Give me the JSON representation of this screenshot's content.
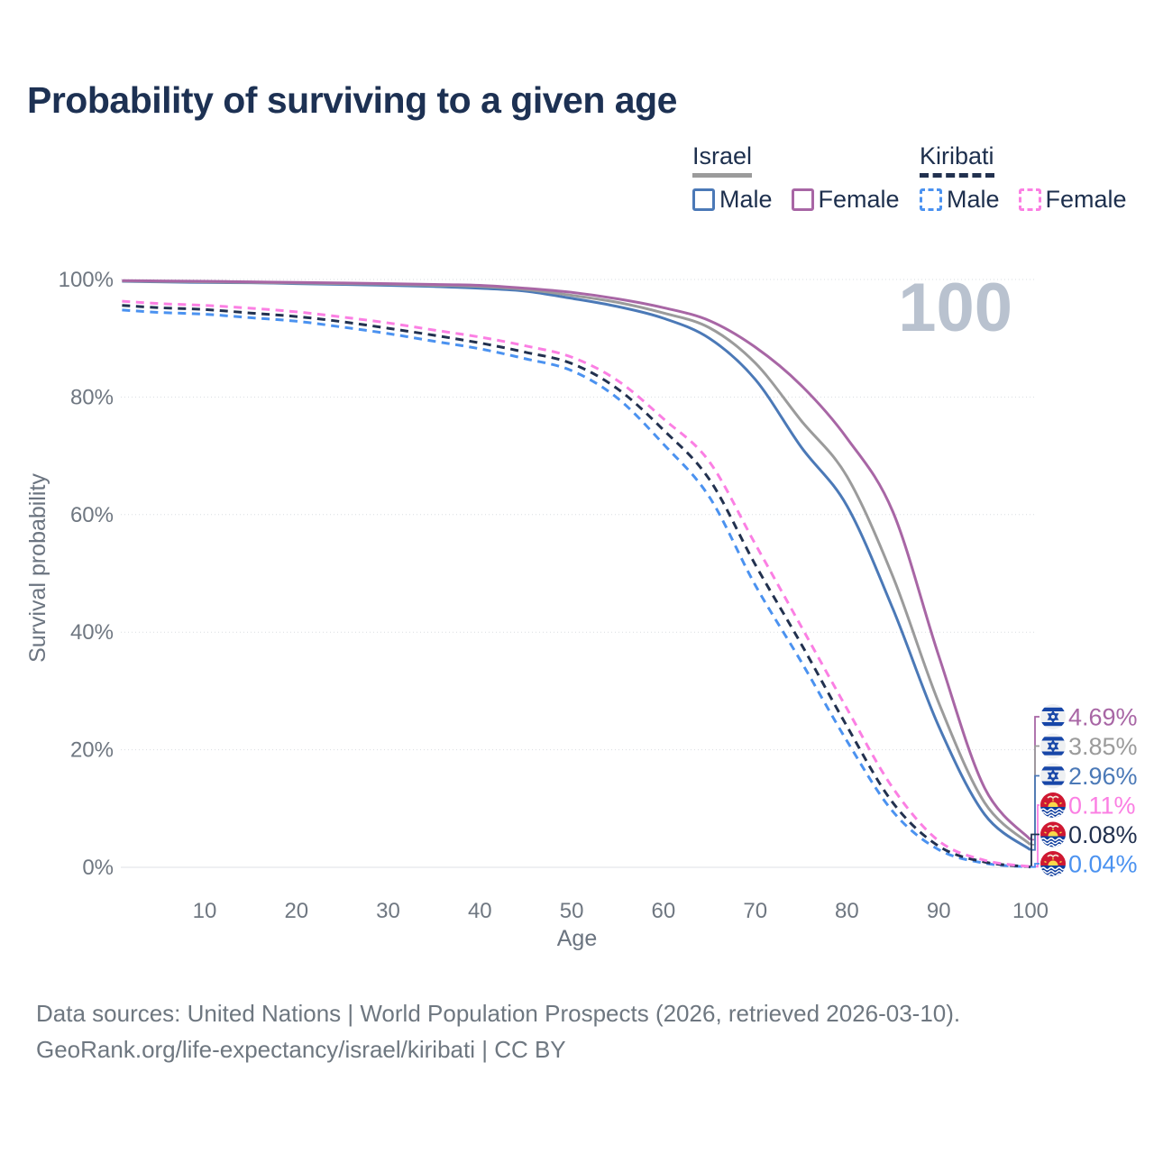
{
  "title": "Probability of surviving to a given age",
  "watermark": "100",
  "legend": {
    "groups": [
      {
        "label": "Israel",
        "line_style": "solid",
        "items": [
          {
            "label": "Male",
            "series": "israel_male"
          },
          {
            "label": "Female",
            "series": "israel_female"
          }
        ]
      },
      {
        "label": "Kiribati",
        "line_style": "dashed",
        "items": [
          {
            "label": "Male",
            "series": "kiribati_male"
          },
          {
            "label": "Female",
            "series": "kiribati_female"
          }
        ]
      }
    ]
  },
  "footer": {
    "line1": "Data sources: United Nations | World Population Prospects (2026, retrieved 2026-03-10).",
    "line2": "GeoRank.org/life-expectancy/israel/kiribati | CC BY"
  },
  "chart_data": {
    "type": "line",
    "title": "Probability of surviving to a given age",
    "xlabel": "Age",
    "ylabel": "Survival probability",
    "xlim": [
      1,
      100
    ],
    "ylim": [
      0,
      100
    ],
    "grid": "horizontal",
    "legend_position": "top-right",
    "x_ticks": [
      10,
      20,
      30,
      40,
      50,
      60,
      70,
      80,
      90,
      100
    ],
    "y_tick_values": [
      0,
      20,
      40,
      60,
      80,
      100
    ],
    "y_tick_labels": [
      "0%",
      "20%",
      "40%",
      "60%",
      "80%",
      "100%"
    ],
    "ages": [
      1,
      5,
      10,
      15,
      20,
      25,
      30,
      35,
      40,
      45,
      50,
      55,
      60,
      65,
      70,
      75,
      80,
      85,
      90,
      95,
      100
    ],
    "series": [
      {
        "id": "israel_female",
        "name": "Israel Female",
        "country": "israel",
        "line": "solid",
        "color": "#a866a5",
        "end_label": "4.69%",
        "values": [
          99.8,
          99.75,
          99.7,
          99.6,
          99.5,
          99.4,
          99.3,
          99.15,
          99.0,
          98.5,
          97.8,
          96.7,
          95.2,
          93.0,
          88.5,
          82.0,
          73.0,
          60.5,
          36.0,
          13.5,
          4.69
        ]
      },
      {
        "id": "israel_both",
        "name": "Israel Both sexes",
        "country": "israel",
        "line": "solid",
        "color": "#9b9b9b",
        "end_label": "3.85%",
        "values": [
          99.75,
          99.68,
          99.6,
          99.5,
          99.4,
          99.3,
          99.2,
          99.0,
          98.8,
          98.3,
          97.3,
          96.1,
          94.3,
          91.8,
          85.8,
          76.0,
          66.5,
          49.5,
          28.0,
          11.0,
          3.85
        ]
      },
      {
        "id": "israel_male",
        "name": "Israel Male",
        "country": "israel",
        "line": "solid",
        "color": "#4b79b7",
        "end_label": "2.96%",
        "values": [
          99.7,
          99.6,
          99.5,
          99.45,
          99.3,
          99.15,
          99.0,
          98.8,
          98.5,
          98.0,
          96.8,
          95.4,
          93.4,
          90.0,
          83.0,
          71.5,
          61.5,
          44.0,
          24.0,
          9.0,
          2.96
        ]
      },
      {
        "id": "kiribati_female",
        "name": "Kiribati Female",
        "country": "kiribati",
        "line": "dashed",
        "color": "#fb7fe3",
        "end_label": "0.11%",
        "values": [
          96.3,
          95.9,
          95.6,
          95.1,
          94.5,
          93.6,
          92.6,
          91.4,
          90.2,
          88.7,
          86.8,
          82.8,
          76.3,
          69.0,
          55.0,
          41.0,
          27.0,
          13.5,
          4.5,
          1.2,
          0.11
        ]
      },
      {
        "id": "kiribati_both",
        "name": "Kiribati Both sexes",
        "country": "kiribati",
        "line": "dashed",
        "color": "#22314f",
        "end_label": "0.08%",
        "values": [
          95.6,
          95.2,
          94.9,
          94.3,
          93.7,
          92.8,
          91.7,
          90.5,
          89.2,
          87.6,
          85.7,
          81.4,
          74.4,
          66.0,
          51.5,
          38.0,
          24.0,
          11.0,
          3.6,
          0.9,
          0.08
        ]
      },
      {
        "id": "kiribati_male",
        "name": "Kiribati Male",
        "country": "kiribati",
        "line": "dashed",
        "color": "#4b92f0",
        "end_label": "0.04%",
        "values": [
          94.8,
          94.4,
          94.1,
          93.5,
          92.9,
          91.9,
          90.8,
          89.5,
          88.2,
          86.5,
          84.5,
          79.8,
          72.0,
          63.0,
          48.0,
          35.0,
          21.5,
          9.5,
          3.0,
          0.7,
          0.04
        ]
      }
    ]
  }
}
